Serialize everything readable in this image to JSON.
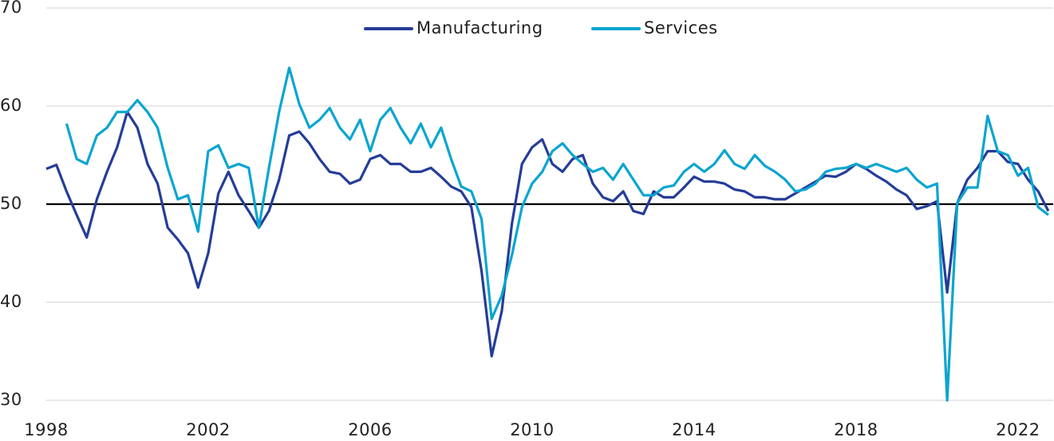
{
  "chart_data": {
    "type": "line",
    "x": [
      1998,
      1998.25,
      1998.5,
      1998.75,
      1999,
      1999.25,
      1999.5,
      1999.75,
      2000,
      2000.25,
      2000.5,
      2000.75,
      2001,
      2001.25,
      2001.5,
      2001.75,
      2002,
      2002.25,
      2002.5,
      2002.75,
      2003,
      2003.25,
      2003.5,
      2003.75,
      2004,
      2004.25,
      2004.5,
      2004.75,
      2005,
      2005.25,
      2005.5,
      2005.75,
      2006,
      2006.25,
      2006.5,
      2006.75,
      2007,
      2007.25,
      2007.5,
      2007.75,
      2008,
      2008.25,
      2008.5,
      2008.75,
      2009,
      2009.25,
      2009.5,
      2009.75,
      2010,
      2010.25,
      2010.5,
      2010.75,
      2011,
      2011.25,
      2011.5,
      2011.75,
      2012,
      2012.25,
      2012.5,
      2012.75,
      2013,
      2013.25,
      2013.5,
      2013.75,
      2014,
      2014.25,
      2014.5,
      2014.75,
      2015,
      2015.25,
      2015.5,
      2015.75,
      2016,
      2016.25,
      2016.5,
      2016.75,
      2017,
      2017.25,
      2017.5,
      2017.75,
      2018,
      2018.25,
      2018.5,
      2018.75,
      2019,
      2019.25,
      2019.5,
      2019.75,
      2020,
      2020.25,
      2020.5,
      2020.75,
      2021,
      2021.25,
      2021.5,
      2021.75,
      2022,
      2022.25,
      2022.5,
      2022.75
    ],
    "series": [
      {
        "name": "Manufacturing",
        "color": "#253d98",
        "values": [
          53.6,
          54.0,
          51.3,
          48.9,
          46.6,
          50.5,
          53.3,
          55.8,
          59.4,
          57.8,
          54.1,
          52.1,
          47.6,
          46.4,
          45.0,
          41.5,
          45.0,
          51.1,
          53.3,
          50.9,
          49.3,
          47.6,
          49.3,
          52.5,
          57.0,
          57.4,
          56.2,
          54.6,
          53.3,
          53.1,
          52.1,
          52.5,
          54.6,
          55.0,
          54.1,
          54.1,
          53.3,
          53.3,
          53.7,
          52.8,
          51.8,
          51.3,
          49.7,
          43.2,
          34.5,
          39.1,
          48.0,
          54.1,
          55.8,
          56.6,
          54.1,
          53.3,
          54.6,
          55.0,
          52.1,
          50.7,
          50.3,
          51.3,
          49.3,
          49.0,
          51.3,
          50.7,
          50.7,
          51.7,
          52.8,
          52.3,
          52.3,
          52.1,
          51.5,
          51.3,
          50.7,
          50.7,
          50.5,
          50.5,
          51.1,
          51.7,
          52.3,
          52.9,
          52.8,
          53.3,
          54.1,
          53.6,
          52.9,
          52.3,
          51.5,
          50.9,
          49.5,
          49.8,
          50.3,
          41.0,
          50.1,
          52.5,
          53.7,
          55.4,
          55.4,
          54.3,
          54.1,
          52.5,
          51.3,
          49.3
        ]
      },
      {
        "name": "Services",
        "color": "#0aa5d0",
        "values": [
          null,
          null,
          58.2,
          54.6,
          54.1,
          57.0,
          57.8,
          59.4,
          59.4,
          60.6,
          59.4,
          57.8,
          53.7,
          50.5,
          50.9,
          47.2,
          55.4,
          56.0,
          53.7,
          54.1,
          53.7,
          47.6,
          53.7,
          59.4,
          63.9,
          60.2,
          57.8,
          58.6,
          59.8,
          57.8,
          56.6,
          58.6,
          55.4,
          58.6,
          59.8,
          57.8,
          56.2,
          58.2,
          55.8,
          57.8,
          54.6,
          51.8,
          51.3,
          48.5,
          38.3,
          40.7,
          44.8,
          49.7,
          52.1,
          53.3,
          55.4,
          56.2,
          55.0,
          54.1,
          53.3,
          53.7,
          52.5,
          54.1,
          52.5,
          50.9,
          50.9,
          51.7,
          51.9,
          53.3,
          54.1,
          53.3,
          54.1,
          55.5,
          54.1,
          53.6,
          55.0,
          53.9,
          53.3,
          52.5,
          51.3,
          51.5,
          52.1,
          53.3,
          53.6,
          53.7,
          54.1,
          53.7,
          54.1,
          53.7,
          53.3,
          53.7,
          52.5,
          51.7,
          52.1,
          30.0,
          50.1,
          51.7,
          51.7,
          59.0,
          55.4,
          55.0,
          52.9,
          53.7,
          49.7,
          48.9
        ]
      }
    ],
    "xlim": [
      1998,
      2022.87
    ],
    "xticks": [
      1998,
      2002,
      2006,
      2010,
      2014,
      2018,
      2022
    ],
    "ylim": [
      30,
      70
    ],
    "yticks": [
      30,
      40,
      50,
      60,
      70
    ],
    "reference_line": 50,
    "grid": true,
    "legend": "top"
  }
}
